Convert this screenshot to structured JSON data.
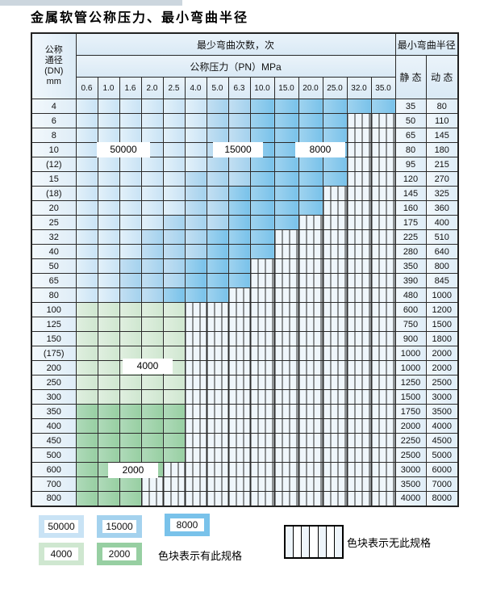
{
  "page": {
    "title": "金属软管公称压力、最小弯曲半径"
  },
  "colors": {
    "blue_50000": "#c9e3f5",
    "blue_15000": "#a4d2ee",
    "blue_8000": "#79c2ea",
    "green_4000": "#cfe7d0",
    "green_2000": "#97cfa2",
    "grid_line": "#2a2a2a",
    "header_bg": "#d9e9f5"
  },
  "table": {
    "header": {
      "dn_label_lines": [
        "公称",
        "通径",
        "(DN)",
        "mm"
      ],
      "cycles_label": "最少弯曲次数，次",
      "pressure_label": "公称压力（PN）MPa",
      "radius_label": "最小弯曲半径",
      "static_label": "静 态",
      "dynamic_label": "动 态",
      "pressures": [
        "0.6",
        "1.0",
        "1.6",
        "2.0",
        "2.5",
        "4.0",
        "5.0",
        "6.3",
        "10.0",
        "15.0",
        "20.0",
        "25.0",
        "32.0",
        "35.0"
      ]
    },
    "rows": [
      {
        "dn": "4",
        "static": "35",
        "dynamic": "80",
        "family": "blue",
        "colored": 14,
        "medium_from": 7,
        "dark_from": 9
      },
      {
        "dn": "6",
        "static": "50",
        "dynamic": "110",
        "family": "blue",
        "colored": 12,
        "medium_from": 7,
        "dark_from": 9
      },
      {
        "dn": "8",
        "static": "65",
        "dynamic": "145",
        "family": "blue",
        "colored": 12,
        "medium_from": 7,
        "dark_from": 9
      },
      {
        "dn": "10",
        "static": "80",
        "dynamic": "180",
        "family": "blue",
        "colored": 12,
        "medium_from": 7,
        "dark_from": 9
      },
      {
        "dn": "(12)",
        "static": "95",
        "dynamic": "215",
        "family": "blue",
        "colored": 12,
        "medium_from": 7,
        "dark_from": 9
      },
      {
        "dn": "15",
        "static": "120",
        "dynamic": "270",
        "family": "blue",
        "colored": 12,
        "medium_from": 6,
        "dark_from": 9
      },
      {
        "dn": "(18)",
        "static": "145",
        "dynamic": "325",
        "family": "blue",
        "colored": 11,
        "medium_from": 6,
        "dark_from": 8
      },
      {
        "dn": "20",
        "static": "160",
        "dynamic": "360",
        "family": "blue",
        "colored": 11,
        "medium_from": 6,
        "dark_from": 8
      },
      {
        "dn": "25",
        "static": "175",
        "dynamic": "400",
        "family": "blue",
        "colored": 10,
        "medium_from": 5,
        "dark_from": 8
      },
      {
        "dn": "32",
        "static": "225",
        "dynamic": "510",
        "family": "blue",
        "colored": 9,
        "medium_from": 4,
        "dark_from": 7
      },
      {
        "dn": "40",
        "static": "280",
        "dynamic": "640",
        "family": "blue",
        "colored": 9,
        "medium_from": 4,
        "dark_from": 7
      },
      {
        "dn": "50",
        "static": "350",
        "dynamic": "800",
        "family": "blue",
        "colored": 8,
        "medium_from": 3,
        "dark_from": 6
      },
      {
        "dn": "65",
        "static": "390",
        "dynamic": "845",
        "family": "blue",
        "colored": 8,
        "medium_from": 3,
        "dark_from": 6
      },
      {
        "dn": "80",
        "static": "480",
        "dynamic": "1000",
        "family": "blue",
        "colored": 7,
        "medium_from": 3,
        "dark_from": 5
      },
      {
        "dn": "100",
        "static": "600",
        "dynamic": "1200",
        "family": "green-light",
        "colored": 5
      },
      {
        "dn": "125",
        "static": "750",
        "dynamic": "1500",
        "family": "green-light",
        "colored": 5
      },
      {
        "dn": "150",
        "static": "900",
        "dynamic": "1800",
        "family": "green-light",
        "colored": 5
      },
      {
        "dn": "(175)",
        "static": "1000",
        "dynamic": "2000",
        "family": "green-light",
        "colored": 5
      },
      {
        "dn": "200",
        "static": "1000",
        "dynamic": "2000",
        "family": "green-light",
        "colored": 5
      },
      {
        "dn": "250",
        "static": "1250",
        "dynamic": "2500",
        "family": "green-light",
        "colored": 5
      },
      {
        "dn": "300",
        "static": "1500",
        "dynamic": "3000",
        "family": "green-light",
        "colored": 5
      },
      {
        "dn": "350",
        "static": "1750",
        "dynamic": "3500",
        "family": "green-dark",
        "colored": 5
      },
      {
        "dn": "400",
        "static": "2000",
        "dynamic": "4000",
        "family": "green-dark",
        "colored": 5
      },
      {
        "dn": "450",
        "static": "2250",
        "dynamic": "4500",
        "family": "green-dark",
        "colored": 5
      },
      {
        "dn": "500",
        "static": "2500",
        "dynamic": "5000",
        "family": "green-dark",
        "colored": 5
      },
      {
        "dn": "600",
        "static": "3000",
        "dynamic": "6000",
        "family": "green-dark",
        "colored": 4
      },
      {
        "dn": "700",
        "static": "3500",
        "dynamic": "7000",
        "family": "green-dark",
        "colored": 3
      },
      {
        "dn": "800",
        "static": "4000",
        "dynamic": "8000",
        "family": "green-dark",
        "colored": 3
      }
    ]
  },
  "annotations": [
    {
      "text": "50000"
    },
    {
      "text": "15000"
    },
    {
      "text": "8000"
    },
    {
      "text": "4000"
    },
    {
      "text": "2000"
    }
  ],
  "legend": {
    "blocks": [
      {
        "value": "50000",
        "type": "blue-light"
      },
      {
        "value": "15000",
        "type": "blue-med"
      },
      {
        "value": "8000",
        "type": "blue-dark"
      },
      {
        "value": "4000",
        "type": "green-light"
      },
      {
        "value": "2000",
        "type": "green-dark"
      }
    ],
    "has_spec_note": "色块表示有此规格",
    "no_spec_note": "色块表示无此规格",
    "no_spec_box_cells": 7
  }
}
